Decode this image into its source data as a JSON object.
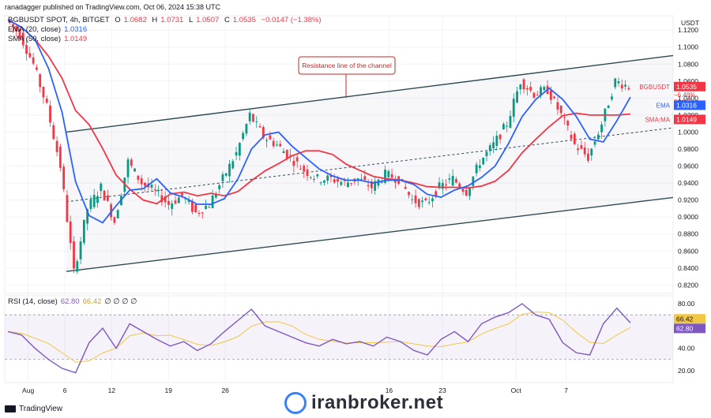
{
  "header": {
    "credit": "ranadagger published on TradingView.com, Oct 06, 2024 15:38 UTC"
  },
  "legend": {
    "symbol": "BGBUSDT SPOT, 4h, BITGET",
    "o_label": "O",
    "o_value": "1.0682",
    "h_label": "H",
    "h_value": "1.0731",
    "l_label": "L",
    "l_value": "1.0507",
    "c_label": "C",
    "c_value": "1.0535",
    "change": "−0.0147 (−1.38%)",
    "ema_label": "EMA (20, close)",
    "ema_value": "1.0316",
    "sma_label": "SMA (50, close)",
    "sma_value": "1.0149",
    "rsi_label": "RSI (14, close)",
    "rsi_value": "62.80",
    "rsi_ma_value": "66.42",
    "rsi_zeros": "∅ ∅ ∅ ∅"
  },
  "branding": {
    "tv": "TradingView",
    "watermark": "iranbroker.net"
  },
  "colors": {
    "up": "#089981",
    "down": "#f23645",
    "ema": "#2962ff",
    "sma": "#f23645",
    "channel": "#2e4a53",
    "rsi": "#7e57c2",
    "rsi_ma": "#f2c744"
  },
  "chart_data": {
    "type": "candlestick",
    "title": "BGBUSDT SPOT, 4h, BITGET",
    "currency": "USDT",
    "y_ticks": [
      "1.1200",
      "1.1000",
      "1.0800",
      "1.0600",
      "1.0400",
      "1.0200",
      "1.0000",
      "0.9800",
      "0.9600",
      "0.9400",
      "0.9200",
      "0.9000",
      "0.8800",
      "0.8600",
      "0.8400",
      "0.8200"
    ],
    "ylim": [
      0.812,
      1.135
    ],
    "x_ticks": [
      "Aug",
      "6",
      "12",
      "19",
      "26",
      "16",
      "23",
      "Oct",
      "7"
    ],
    "annotation": "Resistance line of the channel",
    "price_tags": [
      {
        "label": "BGBUSDT",
        "value": "1.0535",
        "extra": "−6.48%",
        "time": "21:21"
      },
      {
        "label": "EMA",
        "value": "1.0316"
      },
      {
        "label": "SMA:MA",
        "value": "1.0149"
      }
    ],
    "channel": {
      "upper": [
        {
          "x": "Aug 6",
          "y": 1.0
        },
        {
          "x": "Oct 7",
          "y": 1.09
        }
      ],
      "middle": [
        {
          "x": "Aug 6",
          "y": 0.918
        },
        {
          "x": "Oct 7",
          "y": 1.005
        }
      ],
      "lower": [
        {
          "x": "Aug 6",
          "y": 0.836
        },
        {
          "x": "Oct 7",
          "y": 0.923
        }
      ]
    },
    "price_path": [
      [
        "Aug 1",
        1.132
      ],
      [
        "Aug 2",
        1.115
      ],
      [
        "Aug 3",
        1.08
      ],
      [
        "Aug 4",
        1.03
      ],
      [
        "Aug 5",
        0.96
      ],
      [
        "Aug 5b",
        0.835
      ],
      [
        "Aug 6",
        0.91
      ],
      [
        "Aug 7",
        0.935
      ],
      [
        "Aug 8",
        0.895
      ],
      [
        "Aug 9",
        0.965
      ],
      [
        "Aug 10",
        0.94
      ],
      [
        "Aug 12",
        0.93
      ],
      [
        "Aug 13",
        0.915
      ],
      [
        "Aug 15",
        0.925
      ],
      [
        "Aug 16",
        0.905
      ],
      [
        "Aug 18",
        0.915
      ],
      [
        "Aug 20",
        0.945
      ],
      [
        "Aug 22",
        0.975
      ],
      [
        "Aug 24",
        1.02
      ],
      [
        "Aug 26",
        0.995
      ],
      [
        "Aug 28",
        0.985
      ],
      [
        "Aug 30",
        0.97
      ],
      [
        "Sep 1",
        0.955
      ],
      [
        "Sep 3",
        0.945
      ],
      [
        "Sep 5",
        0.945
      ],
      [
        "Sep 7",
        0.94
      ],
      [
        "Sep 9",
        0.945
      ],
      [
        "Sep 11",
        0.935
      ],
      [
        "Sep 13",
        0.95
      ],
      [
        "Sep 14",
        0.945
      ],
      [
        "Sep 16",
        0.92
      ],
      [
        "Sep 18",
        0.915
      ],
      [
        "Sep 19",
        0.935
      ],
      [
        "Sep 20",
        0.945
      ],
      [
        "Sep 21",
        0.93
      ],
      [
        "Sep 23",
        0.965
      ],
      [
        "Sep 25",
        0.985
      ],
      [
        "Sep 26",
        1.01
      ],
      [
        "Sep 27",
        1.06
      ],
      [
        "Sep 28",
        1.045
      ],
      [
        "Sep 29",
        1.05
      ],
      [
        "Oct 1",
        1.02
      ],
      [
        "Oct 2",
        0.985
      ],
      [
        "Oct 3",
        0.97
      ],
      [
        "Oct 4",
        1.01
      ],
      [
        "Oct 5",
        1.06
      ],
      [
        "Oct 6",
        1.0535
      ]
    ],
    "rsi": {
      "ticks": [
        "80.00",
        "40.00",
        "20.00"
      ],
      "ylim": [
        10,
        85
      ],
      "levels": [
        70,
        30
      ],
      "last": 62.8,
      "ma_last": 66.42,
      "path": [
        55,
        52,
        40,
        30,
        22,
        18,
        45,
        58,
        40,
        62,
        55,
        48,
        42,
        46,
        38,
        44,
        55,
        65,
        75,
        60,
        55,
        50,
        45,
        42,
        48,
        44,
        46,
        42,
        50,
        46,
        38,
        34,
        48,
        55,
        46,
        62,
        68,
        72,
        80,
        70,
        66,
        45,
        36,
        34,
        62,
        76,
        62.8
      ]
    }
  }
}
